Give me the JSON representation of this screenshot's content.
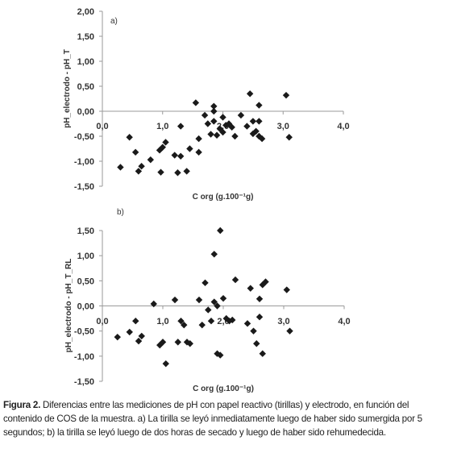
{
  "caption": {
    "figure_label": "Figura 2.",
    "text": " Diferencias entre las mediciones de pH con papel reactivo (tirillas) y electrodo, en función del contenido de COS de la muestra. a) La tirilla se leyó inmediatamente luego de haber sido sumergida por 5 segundos; b) la tirilla se leyó luego de dos horas de secado y luego de haber sido rehumedecida."
  },
  "chart_data": [
    {
      "type": "scatter",
      "panel_label": "a)",
      "xlabel": "C org (g.100⁻¹g)",
      "ylabel": "pH_electrodo - pH_T",
      "xlim": [
        0.0,
        4.0
      ],
      "ylim": [
        -1.5,
        2.0
      ],
      "x_ticks": [
        "0,0",
        "1,0",
        "2,0",
        "3,0",
        "4,0"
      ],
      "y_ticks": [
        "2,00",
        "1,50",
        "1,00",
        "0,50",
        "0,00",
        "-0,50",
        "-1,00",
        "-1,50"
      ],
      "marker_color": "#1a1a1a",
      "points": [
        [
          0.3,
          -1.12
        ],
        [
          0.45,
          -0.52
        ],
        [
          0.55,
          -0.82
        ],
        [
          0.6,
          -1.2
        ],
        [
          0.65,
          -1.1
        ],
        [
          0.8,
          -0.97
        ],
        [
          0.95,
          -0.78
        ],
        [
          0.97,
          -1.22
        ],
        [
          1.0,
          -0.72
        ],
        [
          1.05,
          -0.62
        ],
        [
          1.2,
          -0.88
        ],
        [
          1.25,
          -1.23
        ],
        [
          1.3,
          -0.3
        ],
        [
          1.3,
          -0.9
        ],
        [
          1.4,
          -1.2
        ],
        [
          1.45,
          -0.75
        ],
        [
          1.55,
          0.17
        ],
        [
          1.6,
          -0.82
        ],
        [
          1.6,
          -0.55
        ],
        [
          1.7,
          -0.08
        ],
        [
          1.75,
          -0.25
        ],
        [
          1.8,
          -0.46
        ],
        [
          1.85,
          0.1
        ],
        [
          1.85,
          0.0
        ],
        [
          1.85,
          -0.2
        ],
        [
          1.9,
          -0.48
        ],
        [
          1.95,
          -0.35
        ],
        [
          2.0,
          -0.12
        ],
        [
          2.0,
          -0.42
        ],
        [
          2.05,
          -0.28
        ],
        [
          2.1,
          -0.25
        ],
        [
          2.15,
          -0.32
        ],
        [
          2.2,
          -0.5
        ],
        [
          2.3,
          -0.08
        ],
        [
          2.4,
          -0.3
        ],
        [
          2.45,
          0.35
        ],
        [
          2.5,
          -0.45
        ],
        [
          2.5,
          -0.2
        ],
        [
          2.55,
          -0.4
        ],
        [
          2.6,
          0.12
        ],
        [
          2.6,
          -0.2
        ],
        [
          2.6,
          -0.5
        ],
        [
          2.65,
          -0.55
        ],
        [
          3.05,
          0.32
        ],
        [
          3.1,
          -0.52
        ]
      ]
    },
    {
      "type": "scatter",
      "panel_label": "b)",
      "xlabel": "C org (g.100⁻¹g)",
      "ylabel": "pH_electrodo - pH_T_RL",
      "xlim": [
        0.0,
        4.0
      ],
      "ylim": [
        -1.5,
        2.0
      ],
      "x_ticks": [
        "0,0",
        "1,0",
        "2,0",
        "3,0",
        "4,0"
      ],
      "y_ticks": [
        "1,50",
        "1,00",
        "0,50",
        "0,00",
        "-0,50",
        "-1,00",
        "-1,50"
      ],
      "marker_color": "#1a1a1a",
      "points": [
        [
          0.25,
          -0.62
        ],
        [
          0.45,
          -0.52
        ],
        [
          0.55,
          -0.3
        ],
        [
          0.6,
          -0.7
        ],
        [
          0.65,
          -0.6
        ],
        [
          0.85,
          0.04
        ],
        [
          0.95,
          -0.78
        ],
        [
          1.0,
          -0.72
        ],
        [
          1.05,
          -1.15
        ],
        [
          1.2,
          0.12
        ],
        [
          1.25,
          -0.72
        ],
        [
          1.3,
          -0.3
        ],
        [
          1.35,
          -0.38
        ],
        [
          1.4,
          -0.72
        ],
        [
          1.45,
          -0.75
        ],
        [
          1.6,
          0.12
        ],
        [
          1.65,
          -0.38
        ],
        [
          1.7,
          0.46
        ],
        [
          1.75,
          -0.08
        ],
        [
          1.8,
          -0.3
        ],
        [
          1.85,
          1.03
        ],
        [
          1.85,
          0.08
        ],
        [
          1.9,
          0.0
        ],
        [
          1.9,
          -0.95
        ],
        [
          1.95,
          1.5
        ],
        [
          1.95,
          -0.98
        ],
        [
          2.0,
          0.15
        ],
        [
          2.05,
          -0.25
        ],
        [
          2.1,
          -0.3
        ],
        [
          2.15,
          -0.28
        ],
        [
          2.2,
          0.52
        ],
        [
          2.4,
          -0.35
        ],
        [
          2.45,
          0.35
        ],
        [
          2.5,
          -0.5
        ],
        [
          2.55,
          -0.75
        ],
        [
          2.6,
          -0.22
        ],
        [
          2.6,
          0.14
        ],
        [
          2.65,
          0.42
        ],
        [
          2.65,
          -0.95
        ],
        [
          2.7,
          0.48
        ],
        [
          3.05,
          0.32
        ],
        [
          3.1,
          -0.5
        ]
      ]
    }
  ]
}
